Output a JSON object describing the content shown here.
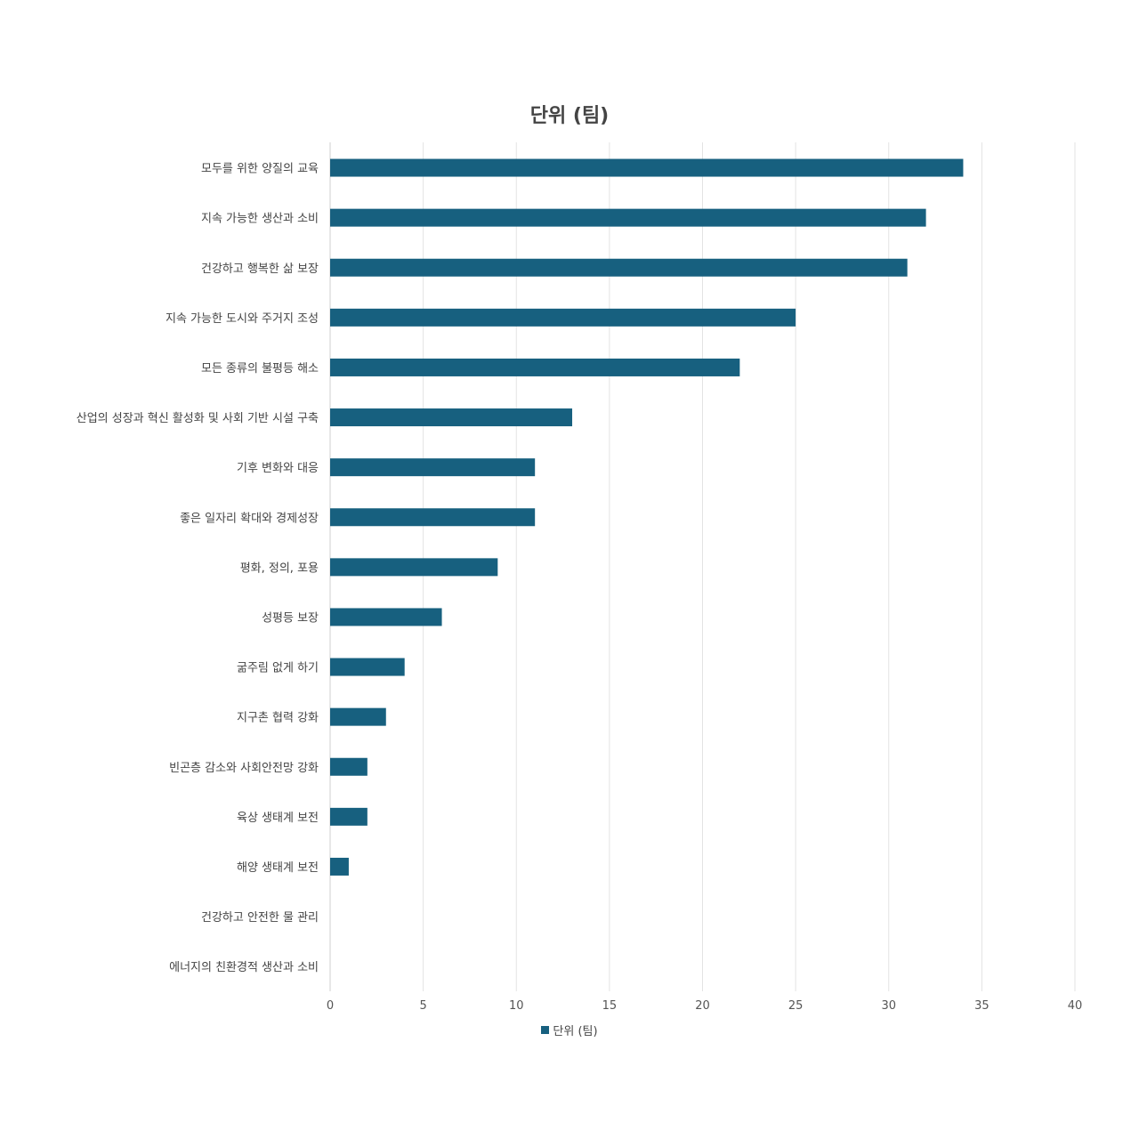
{
  "chart_data": {
    "type": "bar",
    "orientation": "horizontal",
    "title": "단위 (팀)",
    "categories": [
      "모두를 위한 양질의 교육",
      "지속 가능한 생산과 소비",
      "건강하고 행복한 삶 보장",
      "지속 가능한 도시와 주거지 조성",
      "모든 종류의 불평등 해소",
      "산업의 성장과 혁신 활성화 및 사회 기반 시설 구축",
      "기후 변화와 대응",
      "좋은 일자리 확대와 경제성장",
      "평화, 정의, 포용",
      "성평등 보장",
      "굶주림 없게 하기",
      "지구촌 협력 강화",
      "빈곤층 감소와 사회안전망 강화",
      "육상 생태계 보전",
      "해양 생태계 보전",
      "건강하고 안전한 물 관리",
      "에너지의 친환경적 생산과 소비"
    ],
    "series": [
      {
        "name": "단위 (팀)",
        "color": "#17607f",
        "values": [
          34,
          32,
          31,
          25,
          22,
          13,
          11,
          11,
          9,
          6,
          4,
          3,
          2,
          2,
          1,
          0,
          0
        ]
      }
    ],
    "xlim": [
      0,
      40
    ],
    "xticks": [
      0,
      5,
      10,
      15,
      20,
      25,
      30,
      35,
      40
    ],
    "grid": "vertical",
    "legend_position": "bottom"
  }
}
